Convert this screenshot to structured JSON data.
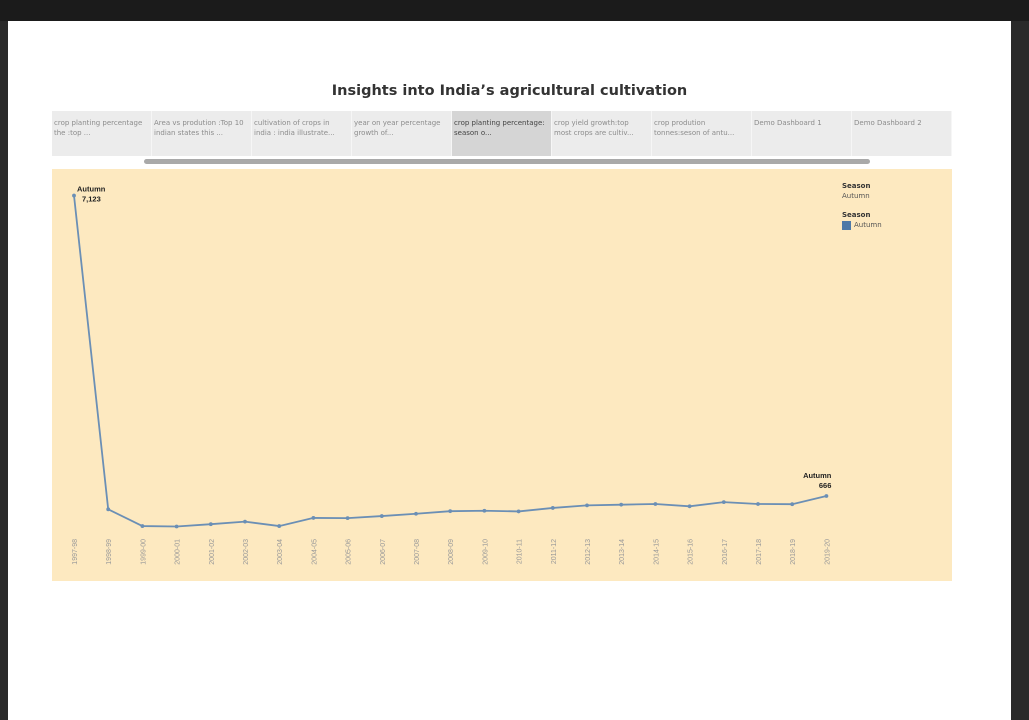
{
  "dashboard": {
    "title": "Insights into India’s agricultural cultivation"
  },
  "tabs": [
    {
      "label": "crop planting percentage the :top ..."
    },
    {
      "label": "Area vs prodution :Top 10 indian states this ..."
    },
    {
      "label": "cultivation of crops in india : india illustrate..."
    },
    {
      "label": "year on year percentage growth of..."
    },
    {
      "label": "crop planting percentage: season o...",
      "active": true
    },
    {
      "label": "crop yield growth:top most crops are cultiv..."
    },
    {
      "label": "crop prodution tonnes:seson of antu..."
    },
    {
      "label": "Demo Dashboard 1"
    },
    {
      "label": "Demo Dashboard 2"
    }
  ],
  "legend": {
    "filter_title": "Season",
    "filter_value": "Autumn",
    "color_title": "Season",
    "color_item": "Autumn",
    "color": "#4e79a7"
  },
  "colors": {
    "panel_bg": "#fde9c0",
    "line": "#6b8fb5"
  },
  "chart_data": {
    "type": "line",
    "x": [
      "1997-98",
      "1998-99",
      "1999-00",
      "2000-01",
      "2001-02",
      "2002-03",
      "2003-04",
      "2004-05",
      "2005-06",
      "2006-07",
      "2007-08",
      "2008-09",
      "2009-10",
      "2010-11",
      "2011-12",
      "2012-13",
      "2013-14",
      "2014-15",
      "2015-16",
      "2016-17",
      "2017-18",
      "2018-19",
      "2019-20"
    ],
    "series": [
      {
        "name": "Autumn",
        "values": [
          7123,
          380,
          20,
          10,
          60,
          115,
          20,
          195,
          190,
          235,
          285,
          340,
          350,
          335,
          410,
          465,
          480,
          495,
          445,
          535,
          495,
          490,
          666
        ]
      }
    ],
    "annotations": [
      {
        "x": "1997-98",
        "label": "Autumn",
        "value": "7,123"
      },
      {
        "x": "2019-20",
        "label": "Autumn",
        "value": "666"
      }
    ],
    "ylim": [
      0,
      7200
    ],
    "grid": false
  }
}
